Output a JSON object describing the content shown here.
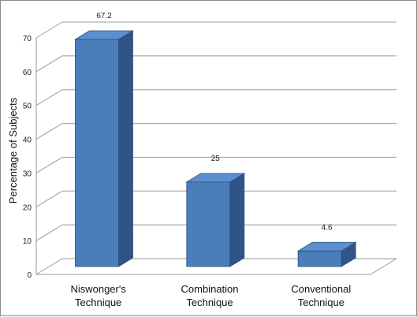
{
  "chart_data": {
    "type": "bar",
    "style": "3d-column",
    "categories": [
      [
        "Niswonger's",
        "Technique"
      ],
      [
        "Combination",
        "Technique"
      ],
      [
        "Conventional",
        "Technique"
      ]
    ],
    "values": [
      67.2,
      25,
      4.6
    ],
    "data_labels": [
      "67.2",
      "25",
      "4.6"
    ],
    "title": "",
    "xlabel": "",
    "ylabel": "Percentage of Subjects",
    "ylim": [
      0,
      70
    ],
    "yticks": [
      0,
      10,
      20,
      30,
      40,
      50,
      60,
      70
    ],
    "grid": true,
    "legend": "none",
    "colors": {
      "bar_front": "#4a7ebb",
      "bar_side": "#2f5485",
      "bar_top": "#5b8fd0",
      "bar_edge": "#2b4e7c",
      "grid": "#9a9a9a"
    }
  }
}
